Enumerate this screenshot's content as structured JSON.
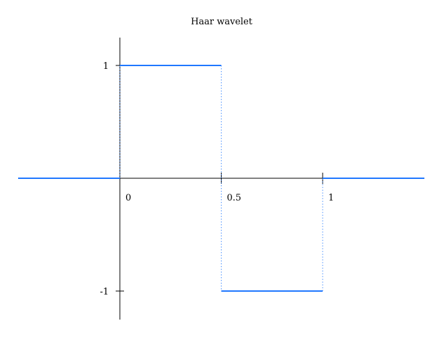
{
  "chart_data": {
    "type": "line",
    "title": "Haar wavelet",
    "xlabel": "",
    "ylabel": "",
    "xlim": [
      -1,
      3
    ],
    "ylim": [
      -1.25,
      1.25
    ],
    "grid": false,
    "x_ticks": [
      {
        "value": 0,
        "label": "0"
      },
      {
        "value": 0.5,
        "label": "0.5"
      },
      {
        "value": 1,
        "label": "1"
      }
    ],
    "y_ticks": [
      {
        "value": 1,
        "label": "1"
      },
      {
        "value": -1,
        "label": "-1"
      }
    ],
    "series": [
      {
        "color": "#1f77ff",
        "segments": [
          {
            "x": [
              -1,
              0
            ],
            "y": [
              0,
              0
            ]
          },
          {
            "x": [
              0,
              0.5
            ],
            "y": [
              1,
              1
            ]
          },
          {
            "x": [
              0.5,
              1
            ],
            "y": [
              -1,
              -1
            ]
          },
          {
            "x": [
              1,
              3
            ],
            "y": [
              0,
              0
            ]
          }
        ],
        "jumps": [
          {
            "x": 0,
            "y": [
              0,
              1
            ]
          },
          {
            "x": 0.5,
            "y": [
              1,
              -1
            ]
          },
          {
            "x": 1,
            "y": [
              -1,
              0
            ]
          }
        ]
      }
    ]
  }
}
